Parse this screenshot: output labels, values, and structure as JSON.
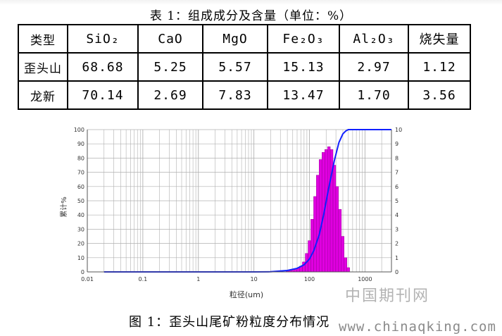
{
  "table": {
    "caption": "表 1：组成成分及含量（单位：%）",
    "headers": [
      "类型",
      "SiO₂",
      "CaO",
      "MgO",
      "Fe₂O₃",
      "Al₂O₃",
      "烧失量"
    ],
    "rows": [
      [
        "歪头山",
        "68.68",
        "5.25",
        "5.57",
        "15.13",
        "2.97",
        "1.12"
      ],
      [
        "龙新",
        "70.14",
        "2.69",
        "7.83",
        "13.47",
        "1.70",
        "3.56"
      ]
    ]
  },
  "figure_caption": "图 1：歪头山尾矿粉粒度分布情况",
  "watermark": {
    "cn": "中国期刊网",
    "url": "www.chinaqking.com"
  },
  "colors": {
    "histogram": "#e000e0",
    "cumulative_line": "#1020ff",
    "grid": "#b0b0b0"
  },
  "chart_data": {
    "type": "bar",
    "title": "",
    "xlabel": "粒径(um)",
    "ylabel": "累计%",
    "x_scale": "log",
    "xlim": [
      0.01,
      3000
    ],
    "ylim": [
      0,
      100
    ],
    "y2lim": [
      0,
      10
    ],
    "x_ticks": [
      "0.01",
      "0.1",
      "1",
      "10",
      "100",
      "1000"
    ],
    "y_ticks": [
      "0",
      "10",
      "20",
      "30",
      "40",
      "50",
      "60",
      "70",
      "80",
      "90",
      "100"
    ],
    "y2_ticks": [
      "0",
      "1",
      "2",
      "3",
      "4",
      "5",
      "6",
      "7",
      "8",
      "9",
      "10"
    ],
    "grid": true,
    "series": [
      {
        "kind": "histogram",
        "axis": "right",
        "bins": [
          {
            "x": 40,
            "y": 0.05
          },
          {
            "x": 45,
            "y": 0.08
          },
          {
            "x": 50,
            "y": 0.12
          },
          {
            "x": 56,
            "y": 0.17
          },
          {
            "x": 63,
            "y": 0.25
          },
          {
            "x": 70,
            "y": 0.4
          },
          {
            "x": 79,
            "y": 0.7
          },
          {
            "x": 89,
            "y": 1.3
          },
          {
            "x": 100,
            "y": 2.2
          },
          {
            "x": 112,
            "y": 3.7
          },
          {
            "x": 126,
            "y": 5.3
          },
          {
            "x": 141,
            "y": 6.8
          },
          {
            "x": 158,
            "y": 7.9
          },
          {
            "x": 178,
            "y": 8.4
          },
          {
            "x": 200,
            "y": 8.6
          },
          {
            "x": 224,
            "y": 8.8
          },
          {
            "x": 251,
            "y": 8.6
          },
          {
            "x": 282,
            "y": 7.5
          },
          {
            "x": 316,
            "y": 6.0
          },
          {
            "x": 355,
            "y": 4.4
          },
          {
            "x": 398,
            "y": 2.5
          },
          {
            "x": 447,
            "y": 1.0
          },
          {
            "x": 501,
            "y": 0.3
          }
        ]
      },
      {
        "kind": "line",
        "axis": "left",
        "x": [
          0.02,
          1,
          10,
          20,
          40,
          60,
          80,
          100,
          120,
          150,
          180,
          220,
          280,
          340,
          400,
          450,
          500,
          3000
        ],
        "y": [
          0,
          0,
          0,
          0.1,
          1,
          2.5,
          5,
          9,
          15,
          26,
          40,
          58,
          78,
          91,
          97,
          99,
          100,
          100
        ]
      }
    ]
  }
}
